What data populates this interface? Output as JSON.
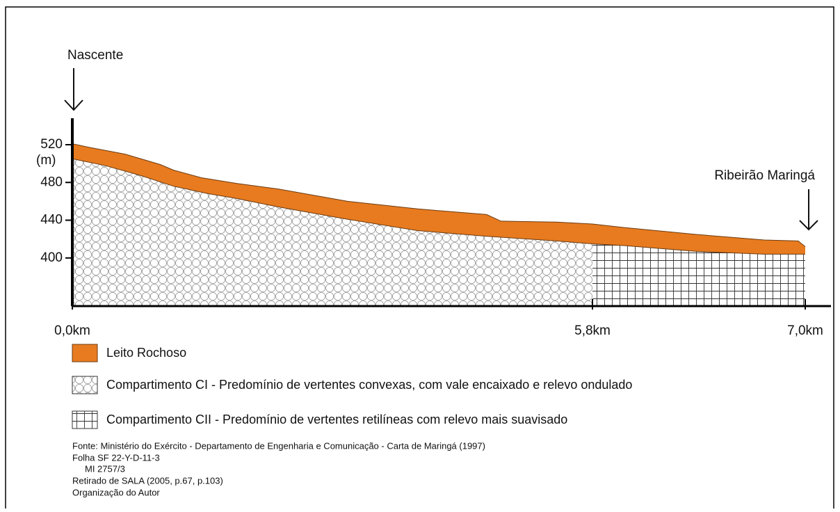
{
  "chart_data": {
    "type": "profile",
    "annotations": [
      "Nascente",
      "Ribeirão Maringá"
    ],
    "y_unit_label": "(m)",
    "ylim": [
      349,
      548
    ],
    "yticks": [
      400,
      440,
      480,
      520
    ],
    "xlim": [
      0,
      7.0
    ],
    "xticks": [
      {
        "value": 0,
        "label": "0,0km"
      },
      {
        "value": 5.8,
        "label": "5,8km"
      },
      {
        "value": 7.0,
        "label": "7,0km"
      }
    ],
    "series": [
      {
        "color": "#e87b1f",
        "x": [
          0,
          0.2,
          0.59,
          0.98,
          1.13,
          1.44,
          1.83,
          2.3,
          3.07,
          3.85,
          4.62,
          4.78,
          5.4,
          5.8,
          5.99,
          6.38,
          6.77,
          6.96,
          7.0
        ],
        "values": [
          521,
          517,
          510,
          499,
          493,
          485,
          479,
          473,
          460,
          452,
          446,
          439,
          438,
          436,
          432,
          425,
          419,
          418,
          412
        ]
      },
      {
        "color": "#6b3a10",
        "x": [
          0,
          0.36,
          0.74,
          1.13,
          1.52,
          1.83,
          2.3,
          3.07,
          3.85,
          4.62,
          5.4,
          5.8,
          5.99,
          6.38,
          6.77,
          7.0
        ],
        "values": [
          505,
          498,
          488,
          476,
          468,
          463,
          454,
          441,
          429,
          423,
          418,
          415,
          413,
          407,
          404,
          404
        ]
      }
    ],
    "legend": [
      {
        "label": "Leito Rochoso"
      },
      {
        "label": "Compartimento CI - Predomínio de vertentes convexas, com vale encaixado e relevo ondulado"
      },
      {
        "label": "Compartimento CII - Predomínio de vertentes retilíneas com relevo mais suavisado"
      }
    ],
    "source_notes": [
      "Fonte: Ministério do Exército - Departamento de Engenharia e Comunicação - Carta de Maringá (1997)",
      "Folha SF 22-Y-D-11-3",
      "MI 2757/3",
      "Retirado de SALA (2005, p.67, p.103)",
      "Organização do Autor"
    ]
  }
}
